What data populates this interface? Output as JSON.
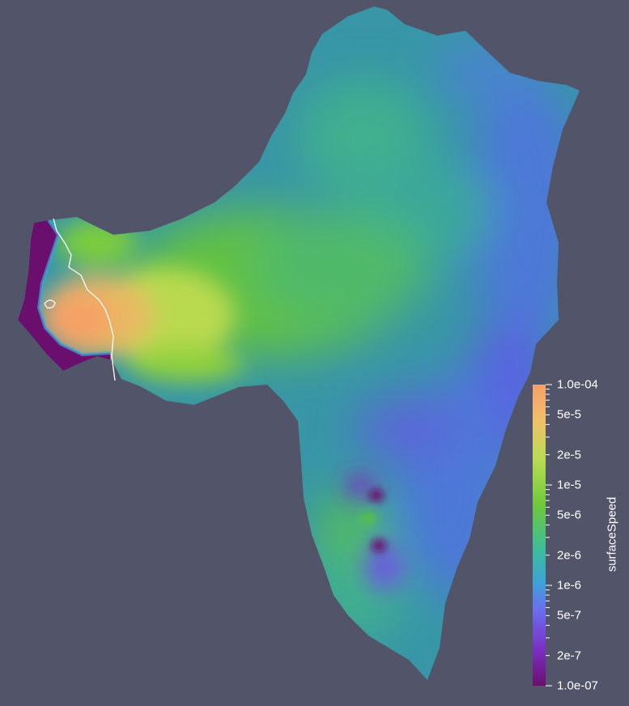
{
  "scalar_bar": {
    "title": "surfaceSpeed",
    "tick_labels": [
      "1.0e-04",
      "5e-5",
      "2e-5",
      "1e-5",
      "5e-6",
      "2e-6",
      "1e-6",
      "5e-7",
      "2e-7",
      "1.0e-07"
    ],
    "range": [
      1e-07,
      0.0001
    ],
    "scale": "log",
    "colormap": [
      "#6b0f6e",
      "#7b2fc4",
      "#6a6ef0",
      "#3fa1d8",
      "#3bbd9b",
      "#6fc83a",
      "#b7dc52",
      "#f0c06a",
      "#f79e68"
    ]
  },
  "colors": {
    "background": "#525469",
    "low_value": "#6b0f6e",
    "high_value": "#f79e68",
    "contour_line": "#ffffff"
  }
}
